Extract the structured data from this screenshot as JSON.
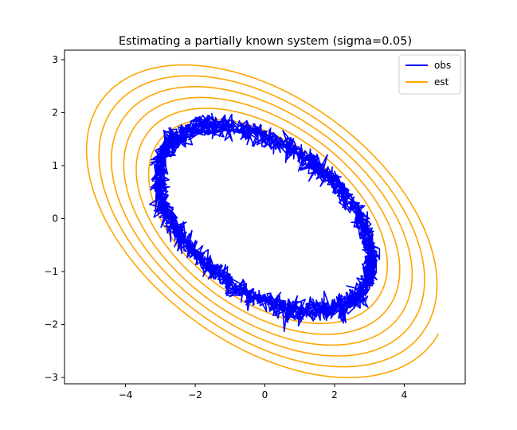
{
  "chart_data": {
    "type": "line",
    "title": "Estimating a partially known system (sigma=0.05)",
    "xlabel": "",
    "ylabel": "",
    "xlim": [
      -5.75,
      5.75
    ],
    "ylim": [
      -3.12,
      3.18
    ],
    "xticks": [
      -4,
      -2,
      0,
      2,
      4
    ],
    "yticks": [
      -3,
      -2,
      -1,
      0,
      1,
      2,
      3
    ],
    "xtick_labels": [
      "−4",
      "−2",
      "0",
      "2",
      "4"
    ],
    "ytick_labels": [
      "−3",
      "−2",
      "−1",
      "0",
      "1",
      "2",
      "3"
    ],
    "grid": false,
    "legend_position": "top-right",
    "series": [
      {
        "name": "obs",
        "color": "#0000ff",
        "kind": "noisy closed ellipse",
        "noise_sigma": 0.05,
        "ellipse": {
          "a": 3.05,
          "b": 1.75,
          "rho": -0.45,
          "scale": 1.0
        }
      },
      {
        "name": "est",
        "color": "#ffa500",
        "kind": "expanding ellipse spiral",
        "ellipse": {
          "a": 3.05,
          "b": 1.75,
          "rho": -0.45
        },
        "start": [
          -1.0,
          -1.0
        ],
        "end": [
          -4.5,
          2.63
        ],
        "turns": 6.25,
        "scale_start": 1.0,
        "scale_end": 1.73
      }
    ]
  }
}
